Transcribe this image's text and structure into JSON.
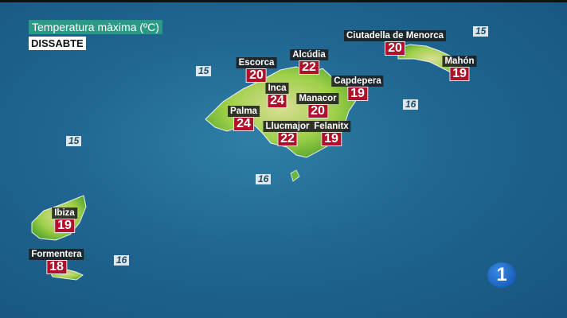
{
  "header": {
    "title": "Temperatura màxima (ºC)",
    "day": "DISSABTE"
  },
  "cities": [
    {
      "name": "Escorca",
      "temp": "20"
    },
    {
      "name": "Alcúdia",
      "temp": "22"
    },
    {
      "name": "Inca",
      "temp": "24"
    },
    {
      "name": "Capdepera",
      "temp": "19"
    },
    {
      "name": "Manacor",
      "temp": "20"
    },
    {
      "name": "Palma",
      "temp": "24"
    },
    {
      "name": "Llucmajor",
      "temp": "22"
    },
    {
      "name": "Felanitx",
      "temp": "19"
    },
    {
      "name": "Ciutadella de Menorca",
      "temp": "20"
    },
    {
      "name": "Mahón",
      "temp": "19"
    },
    {
      "name": "Ibiza",
      "temp": "19"
    },
    {
      "name": "Formentera",
      "temp": "18"
    }
  ],
  "sea_temps": [
    "15",
    "15",
    "15",
    "16",
    "16",
    "16"
  ],
  "logo": "1",
  "colors": {
    "temp_box": "#b0102a",
    "title_bg": "#2a9a86",
    "sea": "#1f6690",
    "land": "#7cc43a"
  }
}
